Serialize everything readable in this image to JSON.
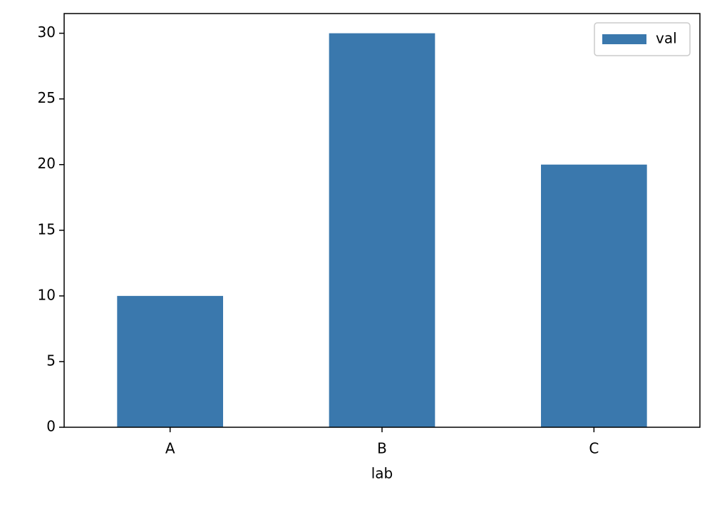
{
  "chart_data": {
    "type": "bar",
    "x_label": "lab",
    "categories": [
      "A",
      "B",
      "C"
    ],
    "series": [
      {
        "name": "val",
        "color": "#3a78ad",
        "values": [
          10,
          30,
          20
        ]
      }
    ],
    "ylim": [
      0,
      31.5
    ],
    "yticks": [
      0,
      5,
      10,
      15,
      20,
      25,
      30
    ],
    "legend": "upper right",
    "grid": false
  }
}
